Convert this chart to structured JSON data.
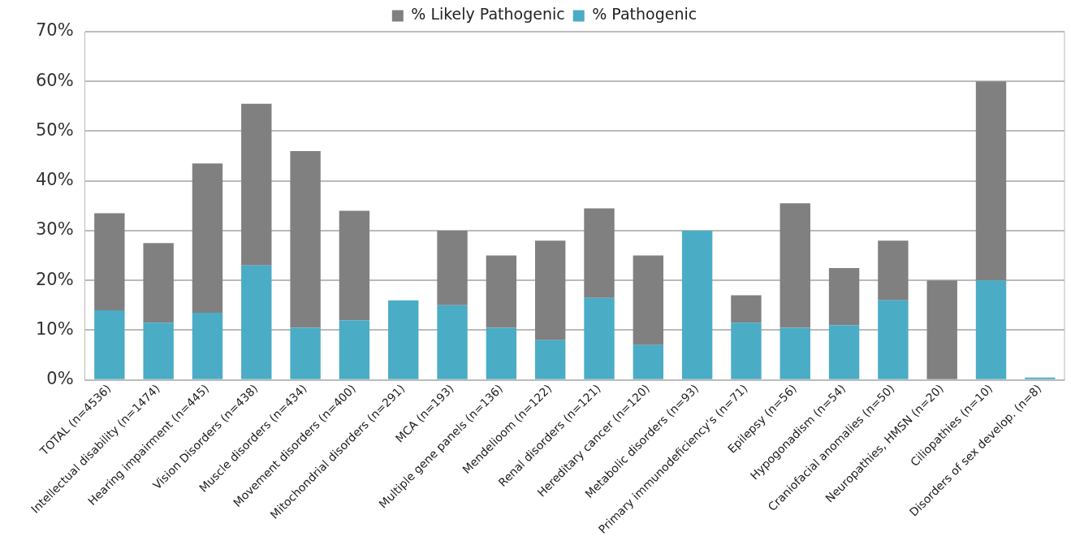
{
  "chart_data": {
    "type": "bar",
    "stacked": true,
    "categories": [
      "TOTAL (n=4536)",
      "Intellectual disability (n=1474)",
      "Hearing impairment (n=445)",
      "Vision Disorders (n=438)",
      "Muscle disorders (n=434)",
      "Movement disorders (n=400)",
      "Mitochondrial disorders (n=291)",
      "MCA (n=193)",
      "Multiple gene panels (n=136)",
      "Mendelioom (n=122)",
      "Renal disorders (n=121)",
      "Hereditary cancer (n=120)",
      "Metabolic disorders (n=93)",
      "Primary immunodeficiency's (n=71)",
      "Epilepsy (n=56)",
      "Hypogonadism (n=54)",
      "Craniofacial anomalies (n=50)",
      "Neuropathies, HMSN (n=20)",
      "Ciliopathies (n=10)",
      "Disorders of sex develop. (n=8)"
    ],
    "series": [
      {
        "name": "% Pathogenic",
        "color": "#4bacc6",
        "values": [
          14,
          11.5,
          13.5,
          23,
          10.5,
          12,
          16,
          15,
          10.5,
          8,
          16.5,
          7,
          30,
          11.5,
          10.5,
          11,
          16,
          0,
          20,
          0.5
        ]
      },
      {
        "name": "% Likely Pathogenic",
        "color": "#808080",
        "values": [
          19.5,
          16,
          30,
          32.5,
          35.5,
          22,
          0,
          15,
          14.5,
          20,
          18,
          18,
          0,
          5.5,
          25,
          11.5,
          12,
          20,
          40,
          0
        ]
      }
    ],
    "ylim": [
      0,
      70
    ],
    "yticks": [
      {
        "value": 0,
        "label": "0%"
      },
      {
        "value": 10,
        "label": "10%"
      },
      {
        "value": 20,
        "label": "20%"
      },
      {
        "value": 30,
        "label": "30%"
      },
      {
        "value": 40,
        "label": "40%"
      },
      {
        "value": 50,
        "label": "50%"
      },
      {
        "value": 60,
        "label": "60%"
      },
      {
        "value": 70,
        "label": "70%"
      }
    ],
    "grid": "y",
    "legend": "top"
  }
}
